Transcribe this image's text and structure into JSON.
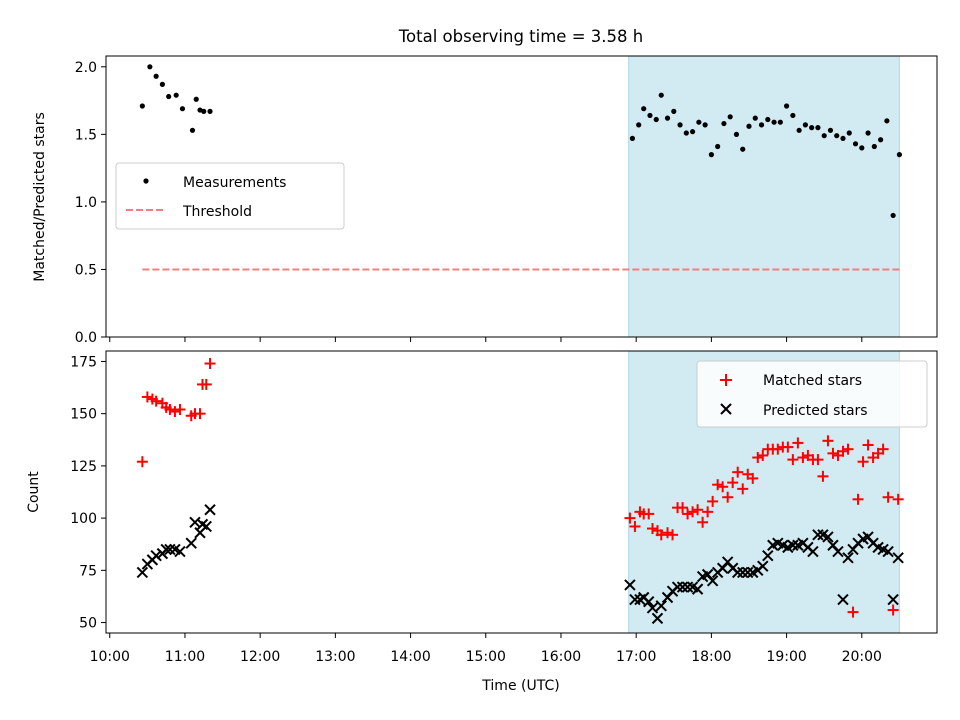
{
  "title": "Total observing time = 3.58 h",
  "colors": {
    "shade": "#add8e6",
    "threshold": "#f08080",
    "matched": "#ff0000",
    "predicted": "#000000"
  },
  "chart_data": [
    {
      "type": "scatter",
      "panel": "top",
      "title": "Total observing time = 3.58 h",
      "xlabel": "",
      "ylabel": "Matched/Predicted stars",
      "ylim": [
        0,
        2.08
      ],
      "yticks": [
        0.0,
        0.5,
        1.0,
        1.5,
        2.0
      ],
      "ytick_labels": [
        "0.0",
        "0.5",
        "1.0",
        "1.5",
        "2.0"
      ],
      "xlim_hours": [
        9.95,
        21.0
      ],
      "shaded_region": [
        16.9,
        20.5
      ],
      "legend_position": "center-left",
      "series": [
        {
          "name": "Measurements",
          "marker": "dot",
          "x": [
            "10:26",
            "10:32",
            "10:37",
            "10:42",
            "10:47",
            "10:53",
            "10:58",
            "11:06",
            "11:09",
            "11:12",
            "11:15",
            "11:20",
            "16:57",
            "17:02",
            "17:06",
            "17:11",
            "17:16",
            "17:20",
            "17:25",
            "17:30",
            "17:35",
            "17:40",
            "17:45",
            "17:50",
            "17:55",
            "18:00",
            "18:05",
            "18:10",
            "18:15",
            "18:20",
            "18:25",
            "18:30",
            "18:35",
            "18:40",
            "18:45",
            "18:50",
            "18:55",
            "19:00",
            "19:05",
            "19:10",
            "19:15",
            "19:20",
            "19:25",
            "19:30",
            "19:35",
            "19:40",
            "19:45",
            "19:50",
            "19:55",
            "20:00",
            "20:05",
            "20:10",
            "20:15",
            "20:20",
            "20:25",
            "20:30"
          ],
          "y": [
            1.71,
            2.0,
            1.93,
            1.87,
            1.78,
            1.79,
            1.69,
            1.53,
            1.76,
            1.68,
            1.67,
            1.67,
            1.47,
            1.57,
            1.69,
            1.64,
            1.61,
            1.79,
            1.62,
            1.67,
            1.57,
            1.51,
            1.52,
            1.59,
            1.57,
            1.35,
            1.41,
            1.58,
            1.63,
            1.5,
            1.39,
            1.56,
            1.62,
            1.57,
            1.61,
            1.59,
            1.59,
            1.71,
            1.64,
            1.53,
            1.57,
            1.55,
            1.55,
            1.49,
            1.53,
            1.49,
            1.47,
            1.51,
            1.43,
            1.4,
            1.51,
            1.41,
            1.46,
            1.6,
            0.9,
            1.35
          ]
        },
        {
          "name": "Threshold",
          "marker": "dashed-line",
          "x": [
            "10:26",
            "20:30"
          ],
          "y": [
            0.5,
            0.5
          ]
        }
      ]
    },
    {
      "type": "scatter",
      "panel": "bottom",
      "xlabel": "Time (UTC)",
      "ylabel": "Count",
      "ylim": [
        45,
        180
      ],
      "yticks": [
        50,
        75,
        100,
        125,
        150,
        175
      ],
      "ytick_labels": [
        "50",
        "75",
        "100",
        "125",
        "150",
        "175"
      ],
      "xlim_hours": [
        9.95,
        21.0
      ],
      "xticks": [
        "10:00",
        "11:00",
        "12:00",
        "13:00",
        "14:00",
        "15:00",
        "16:00",
        "17:00",
        "18:00",
        "19:00",
        "20:00"
      ],
      "shaded_region": [
        16.9,
        20.5
      ],
      "legend_position": "top-right",
      "series": [
        {
          "name": "Matched stars",
          "marker": "plus",
          "x": [
            "10:26",
            "10:30",
            "10:34",
            "10:37",
            "10:42",
            "10:45",
            "10:48",
            "10:52",
            "10:56",
            "11:05",
            "11:08",
            "11:12",
            "11:14",
            "11:17",
            "11:20",
            "16:55",
            "16:59",
            "17:03",
            "17:06",
            "17:10",
            "17:13",
            "17:17",
            "17:20",
            "17:25",
            "17:29",
            "17:33",
            "17:37",
            "17:41",
            "17:45",
            "17:49",
            "17:53",
            "17:57",
            "18:01",
            "18:05",
            "18:09",
            "18:13",
            "18:17",
            "18:21",
            "18:25",
            "18:29",
            "18:33",
            "18:37",
            "18:41",
            "18:45",
            "18:49",
            "18:53",
            "18:57",
            "19:01",
            "19:05",
            "19:09",
            "19:13",
            "19:17",
            "19:21",
            "19:25",
            "19:29",
            "19:33",
            "19:37",
            "19:41",
            "19:45",
            "19:49",
            "19:53",
            "19:57",
            "20:01",
            "20:05",
            "20:09",
            "20:13",
            "20:17",
            "20:21",
            "20:25",
            "20:29"
          ],
          "y": [
            127,
            158,
            157,
            156,
            155,
            153,
            152,
            151,
            152,
            149,
            150,
            150,
            164,
            164,
            174,
            100,
            96,
            103,
            102,
            102,
            95,
            94,
            92,
            93,
            92,
            105,
            105,
            102,
            103,
            104,
            98,
            103,
            108,
            116,
            115,
            110,
            117,
            122,
            114,
            121,
            119,
            129,
            130,
            133,
            133,
            133,
            134,
            134,
            128,
            136,
            129,
            130,
            128,
            128,
            120,
            137,
            131,
            130,
            132,
            133,
            55,
            109,
            127,
            135,
            129,
            131,
            133,
            110,
            56,
            109
          ]
        },
        {
          "name": "Predicted stars",
          "marker": "x",
          "x": [
            "10:26",
            "10:30",
            "10:34",
            "10:37",
            "10:42",
            "10:45",
            "10:48",
            "10:52",
            "10:56",
            "11:05",
            "11:08",
            "11:12",
            "11:14",
            "11:17",
            "11:20",
            "16:55",
            "16:59",
            "17:03",
            "17:06",
            "17:10",
            "17:13",
            "17:17",
            "17:20",
            "17:25",
            "17:29",
            "17:33",
            "17:37",
            "17:41",
            "17:45",
            "17:49",
            "17:53",
            "17:57",
            "18:01",
            "18:05",
            "18:09",
            "18:13",
            "18:17",
            "18:21",
            "18:25",
            "18:29",
            "18:33",
            "18:37",
            "18:41",
            "18:45",
            "18:49",
            "18:53",
            "18:57",
            "19:01",
            "19:05",
            "19:09",
            "19:13",
            "19:17",
            "19:21",
            "19:25",
            "19:29",
            "19:33",
            "19:37",
            "19:41",
            "19:45",
            "19:49",
            "19:53",
            "19:57",
            "20:01",
            "20:05",
            "20:09",
            "20:13",
            "20:17",
            "20:21",
            "20:25",
            "20:29"
          ],
          "y": [
            74,
            78,
            80,
            82,
            83,
            85,
            85,
            85,
            84,
            88,
            98,
            93,
            97,
            96,
            104,
            68,
            61,
            61,
            62,
            60,
            57,
            52,
            58,
            62,
            65,
            67,
            67,
            67,
            67,
            66,
            72,
            73,
            70,
            74,
            76,
            79,
            76,
            74,
            74,
            74,
            74,
            75,
            77,
            82,
            87,
            88,
            87,
            86,
            87,
            87,
            88,
            86,
            84,
            92,
            92,
            91,
            87,
            84,
            61,
            81,
            85,
            88,
            90,
            91,
            88,
            86,
            85,
            84,
            61,
            81
          ]
        }
      ]
    }
  ]
}
